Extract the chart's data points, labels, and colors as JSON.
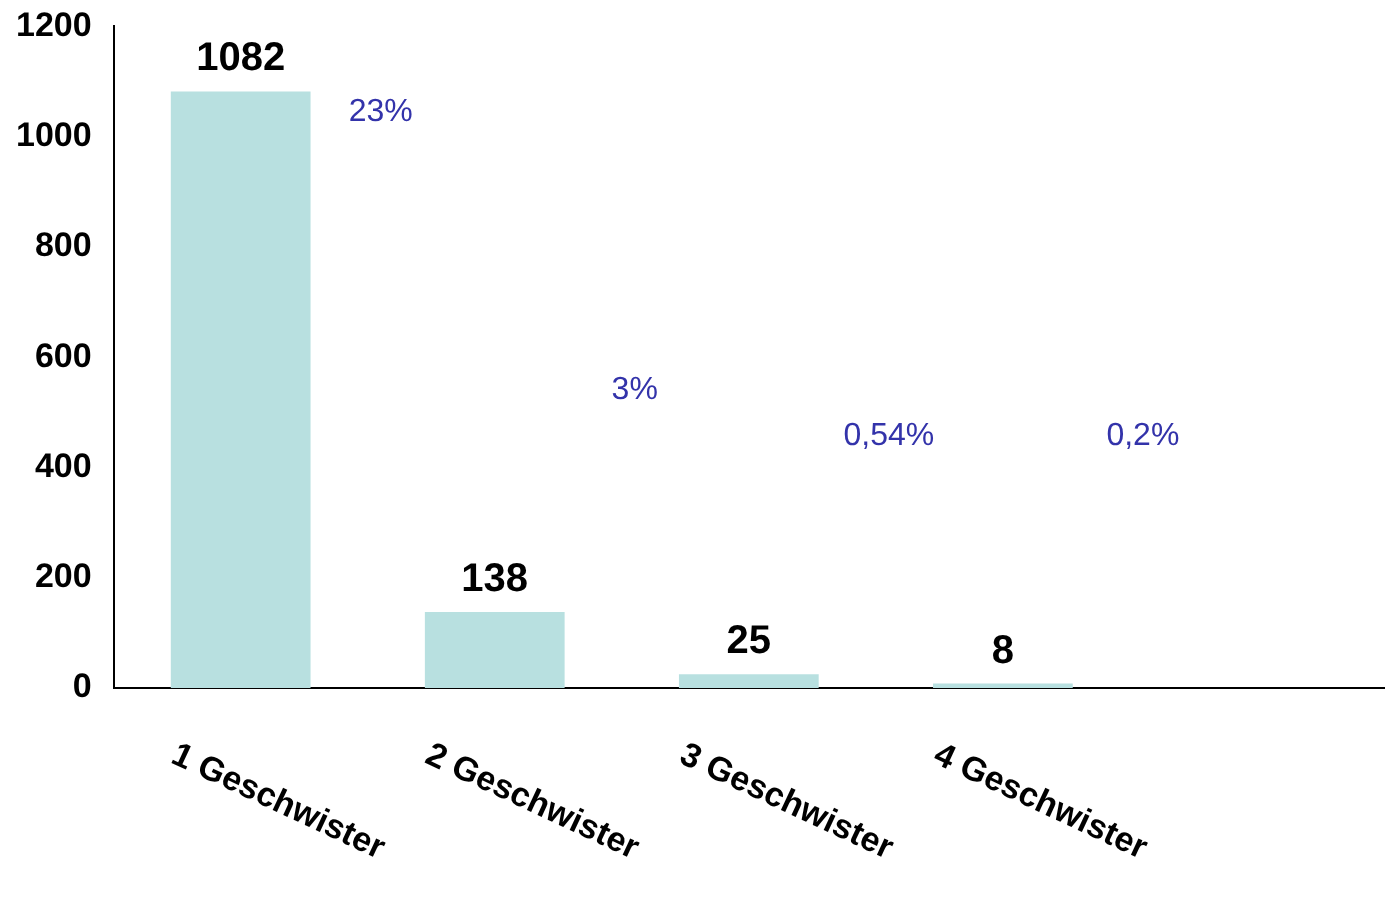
{
  "chart_data": {
    "type": "bar",
    "categories": [
      "1 Geschwister",
      "2 Geschwister",
      "3 Geschwister",
      "4 Geschwister",
      null
    ],
    "values": [
      1082,
      138,
      25,
      8,
      null
    ],
    "color": "#b8e0e0",
    "data_labels": true,
    "ylim": [
      0,
      1200
    ],
    "yticks": [
      0,
      200,
      400,
      600,
      800,
      1000,
      1200
    ],
    "grid": false,
    "legend": false,
    "annotations": [
      "23%",
      "3%",
      "0,54%",
      "0,2%"
    ]
  }
}
